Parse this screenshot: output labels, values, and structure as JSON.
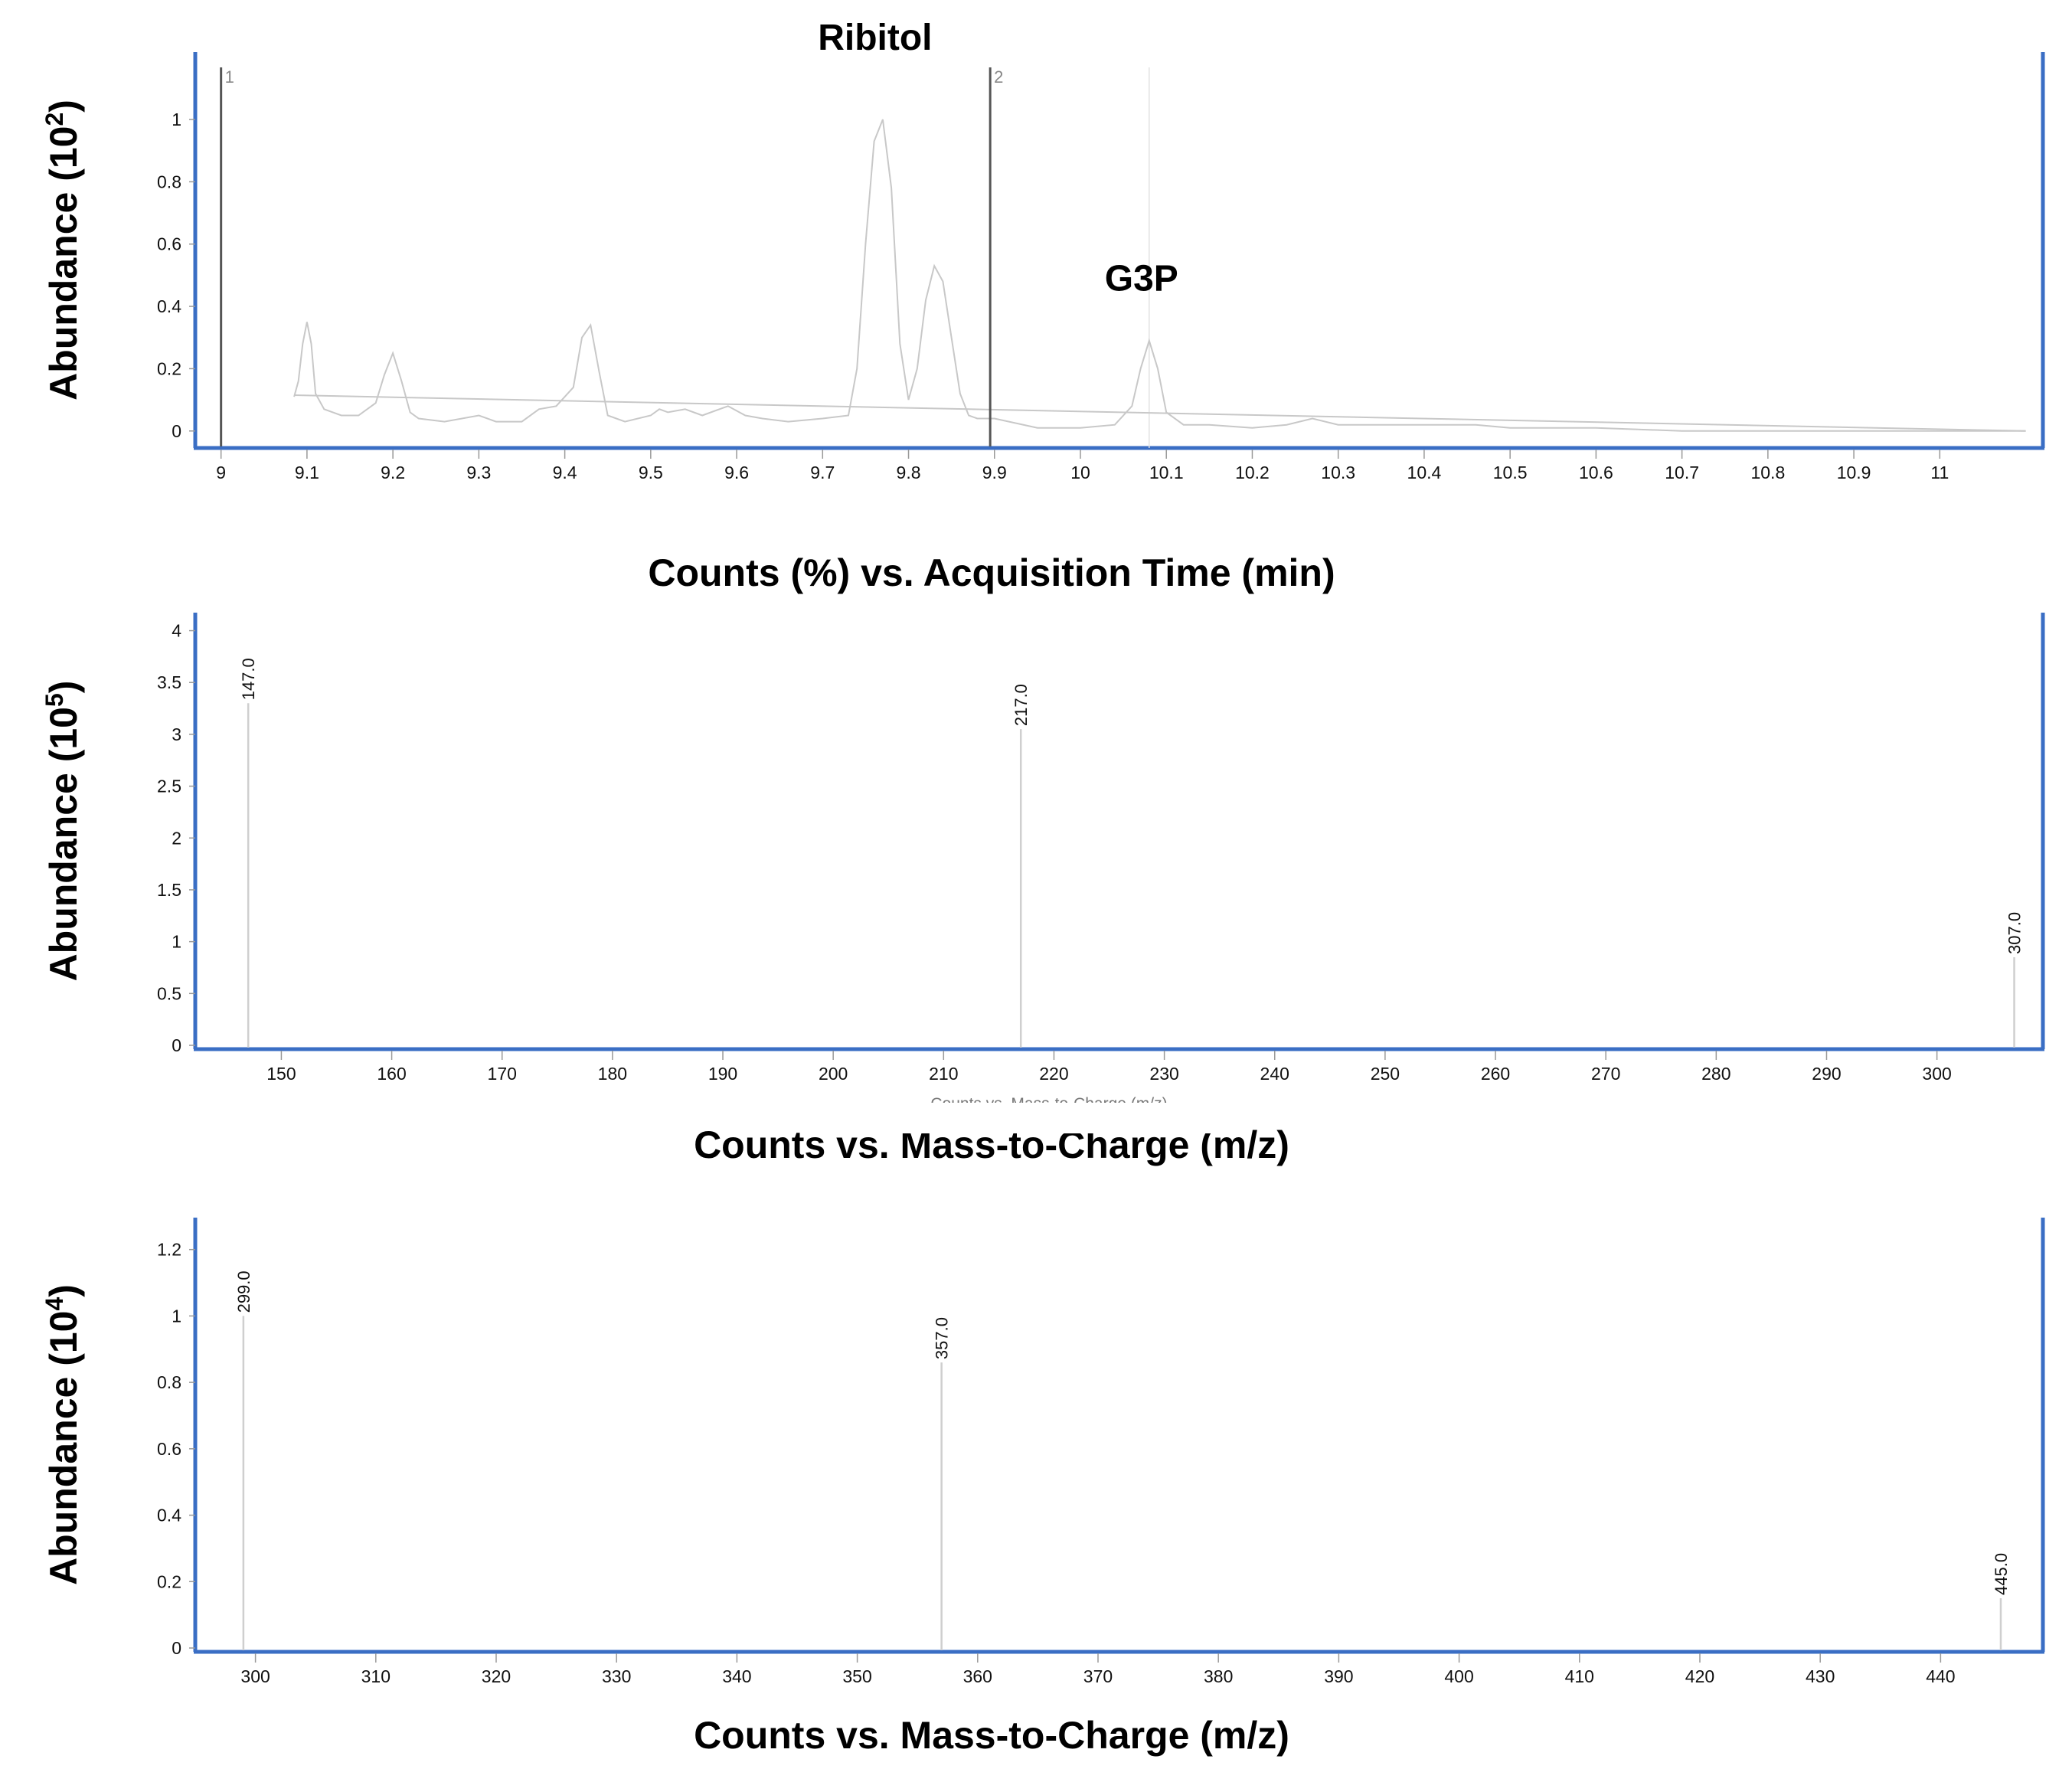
{
  "colors": {
    "frame": "#3a6ec4",
    "trace": "#c8c8c8",
    "stick": "#cfcfcf",
    "marker": "#555555",
    "text": "#111111"
  },
  "chart_data": [
    {
      "type": "line",
      "title": "Counts (%) vs. Acquisition Time (min)",
      "ylabel_base": "Abundance (10",
      "ylabel_exp": "2",
      "ylabel_end": ")",
      "xlim": [
        8.97,
        11.12
      ],
      "ylim": [
        -0.03,
        1.15
      ],
      "xticks": [
        9,
        9.1,
        9.2,
        9.3,
        9.4,
        9.5,
        9.6,
        9.7,
        9.8,
        9.9,
        10,
        10.1,
        10.2,
        10.3,
        10.4,
        10.5,
        10.6,
        10.7,
        10.8,
        10.9,
        11
      ],
      "xtick_labels": [
        "9",
        "9.1",
        "9.2",
        "9.3",
        "9.4",
        "9.5",
        "9.6",
        "9.7",
        "9.8",
        "9.9",
        "10",
        "10.1",
        "10.2",
        "10.3",
        "10.4",
        "10.5",
        "10.6",
        "10.7",
        "10.8",
        "10.9",
        "11"
      ],
      "yticks": [
        0,
        0.2,
        0.4,
        0.6,
        0.8,
        1
      ],
      "ytick_labels": [
        "0",
        "0.2",
        "0.4",
        "0.6",
        "0.8",
        "1"
      ],
      "series": [
        {
          "x": [
            9.085,
            9.09,
            9.095,
            9.1,
            9.105,
            9.11,
            9.12,
            9.14,
            9.16,
            9.18,
            9.19,
            9.2,
            9.21,
            9.22,
            9.23,
            9.26,
            9.3,
            9.32,
            9.35,
            9.37,
            9.39,
            9.41,
            9.42,
            9.43,
            9.44,
            9.45,
            9.47,
            9.5,
            9.51,
            9.52,
            9.54,
            9.56,
            9.58,
            9.59,
            9.61,
            9.63,
            9.66,
            9.7,
            9.73,
            9.74,
            9.75,
            9.76,
            9.77,
            9.78,
            9.79,
            9.8,
            9.81,
            9.82,
            9.83,
            9.84,
            9.85,
            9.86,
            9.87,
            9.88,
            9.89,
            9.9,
            9.95,
            10.0,
            10.04,
            10.06,
            10.07,
            10.08,
            10.09,
            10.1,
            10.12,
            10.15,
            10.2,
            10.24,
            10.27,
            10.3,
            10.4,
            10.46,
            10.5,
            10.6,
            10.7,
            10.8,
            10.9,
            11.0,
            11.1
          ],
          "y": [
            0.11,
            0.16,
            0.28,
            0.35,
            0.28,
            0.12,
            0.07,
            0.05,
            0.05,
            0.09,
            0.18,
            0.25,
            0.16,
            0.06,
            0.04,
            0.03,
            0.05,
            0.03,
            0.03,
            0.07,
            0.08,
            0.14,
            0.3,
            0.34,
            0.19,
            0.05,
            0.03,
            0.05,
            0.07,
            0.06,
            0.07,
            0.05,
            0.07,
            0.08,
            0.05,
            0.04,
            0.03,
            0.04,
            0.05,
            0.2,
            0.6,
            0.93,
            1.0,
            0.78,
            0.28,
            0.1,
            0.2,
            0.42,
            0.53,
            0.48,
            0.3,
            0.12,
            0.05,
            0.04,
            0.04,
            0.04,
            0.01,
            0.01,
            0.02,
            0.08,
            0.2,
            0.29,
            0.2,
            0.06,
            0.02,
            0.02,
            0.01,
            0.02,
            0.04,
            0.02,
            0.02,
            0.02,
            0.01,
            0.01,
            0.0,
            0.0,
            0.0,
            0.0,
            0.0
          ]
        },
        {
          "x": [
            9.085,
            11.1
          ],
          "y": [
            0.115,
            0.0
          ]
        }
      ],
      "markers": [
        {
          "x": 9.0,
          "label": "1"
        },
        {
          "x": 9.895,
          "label": "2"
        }
      ],
      "annotations": [
        {
          "text": "Ribitol",
          "x": 9.77,
          "y": 1.15
        },
        {
          "text": "G3P",
          "x": 10.08,
          "y": 0.45
        }
      ],
      "reference_line_x": 10.08
    },
    {
      "type": "bar",
      "title": "Counts vs. Mass-to-Charge (m/z)",
      "clipped_xlabel": "Counts vs. Mass-to-Charge (m/z)",
      "ylabel_base": "Abundance (10",
      "ylabel_exp": "5",
      "ylabel_end": ")",
      "xlim": [
        142.2,
        309.6
      ],
      "ylim": [
        0,
        4.1
      ],
      "xticks": [
        150,
        160,
        170,
        180,
        190,
        200,
        210,
        220,
        230,
        240,
        250,
        260,
        270,
        280,
        290,
        300
      ],
      "xtick_labels": [
        "150",
        "160",
        "170",
        "180",
        "190",
        "200",
        "210",
        "220",
        "230",
        "240",
        "250",
        "260",
        "270",
        "280",
        "290",
        "300"
      ],
      "yticks": [
        0,
        0.5,
        1,
        1.5,
        2,
        2.5,
        3,
        3.5,
        4
      ],
      "ytick_labels": [
        "0",
        "0.5",
        "1",
        "1.5",
        "2",
        "2.5",
        "3",
        "3.5",
        "4"
      ],
      "peaks": [
        {
          "x": 147.0,
          "y": 3.3,
          "label": "147.0"
        },
        {
          "x": 217.0,
          "y": 3.05,
          "label": "217.0"
        },
        {
          "x": 307.0,
          "y": 0.85,
          "label": "307.0"
        }
      ]
    },
    {
      "type": "bar",
      "title": "Counts vs. Mass-to-Charge (m/z)",
      "ylabel_base": "Abundance (10",
      "ylabel_exp": "4",
      "ylabel_end": ")",
      "xlim": [
        295.0,
        448.5
      ],
      "ylim": [
        0,
        1.28
      ],
      "xticks": [
        300,
        310,
        320,
        330,
        340,
        350,
        360,
        370,
        380,
        390,
        400,
        410,
        420,
        430,
        440
      ],
      "xtick_labels": [
        "300",
        "310",
        "320",
        "330",
        "340",
        "350",
        "360",
        "370",
        "380",
        "390",
        "400",
        "410",
        "420",
        "430",
        "440"
      ],
      "yticks": [
        0,
        0.2,
        0.4,
        0.6,
        0.8,
        1,
        1.2
      ],
      "ytick_labels": [
        "0",
        "0.2",
        "0.4",
        "0.6",
        "0.8",
        "1",
        "1.2"
      ],
      "peaks": [
        {
          "x": 299.0,
          "y": 1.0,
          "label": "299.0"
        },
        {
          "x": 357.0,
          "y": 0.86,
          "label": "357.0"
        },
        {
          "x": 445.0,
          "y": 0.15,
          "label": "445.0"
        }
      ]
    }
  ]
}
